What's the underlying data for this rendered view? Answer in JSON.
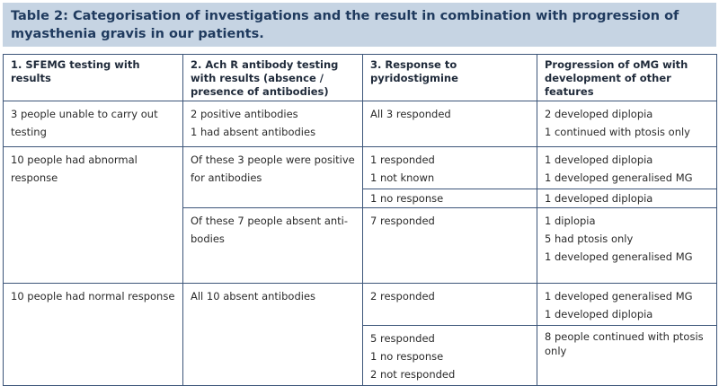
{
  "title": "Table 2: Categorisation of investigations and the result in combination with progression of myasthenia gravis in our patients.",
  "headers": [
    "1. SFEMG testing with results",
    "2. Ach R antibody testing with results (absence / presence of antibodies)",
    "3. Response to pyridostigmine",
    "Progression of oMG with development of other features"
  ],
  "r1": {
    "c1": "3 people unable to carry out testing",
    "c2": [
      "2 positive antibodies",
      "1 had absent antibodies"
    ],
    "c3": "All 3 responded",
    "c4": [
      "2 developed diplopia",
      "1 continued with ptosis only"
    ]
  },
  "r2": {
    "c1": "10 people had abnormal response",
    "c2a": "Of these 3 people were positive for antibodies",
    "c3a": [
      "1 responded",
      "1 not known"
    ],
    "c4a": [
      "1 developed diplopia",
      "1 developed generalised MG"
    ],
    "c3b": "1 no response",
    "c4b": "1 developed diplopia",
    "c2c": "Of these 7 people absent anti-bodies",
    "c3c": "7 responded",
    "c4c": [
      "1 diplopia",
      "5 had ptosis only",
      "1 developed generalised MG"
    ]
  },
  "r3": {
    "c1": "10 people had normal response",
    "c2": "All 10 absent antibodies",
    "c3a": "2 responded",
    "c4a": [
      "1 developed generalised MG",
      "1 developed diplopia"
    ],
    "c3b": [
      "5 responded",
      "1 no response",
      "2 not responded"
    ],
    "c4b": "8 people continued with ptosis only"
  }
}
